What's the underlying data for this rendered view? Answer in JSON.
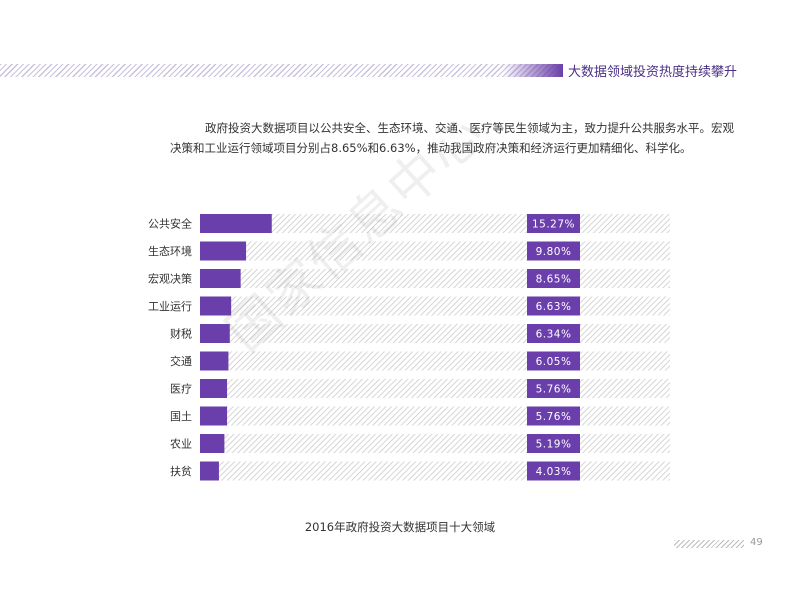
{
  "header": {
    "title": "大数据领域投资热度持续攀升"
  },
  "intro": {
    "line1": "政府投资大数据项目以公共安全、生态环境、交通、医疗等民生领域为主，致力提升公共服务水平。宏观",
    "line2": "决策和工业运行领域项目分别占8.65%和6.63%，推动我国政府决策和经济运行更加精细化、科学化。"
  },
  "watermark": "国家信息中心",
  "chart_data": {
    "type": "bar",
    "orientation": "horizontal",
    "title": "2016年政府投资大数据项目十大领域",
    "categories": [
      "公共安全",
      "生态环境",
      "宏观决策",
      "工业运行",
      "财税",
      "交通",
      "医疗",
      "国土",
      "农业",
      "扶贫"
    ],
    "values": [
      15.27,
      9.8,
      8.65,
      6.63,
      6.34,
      6.05,
      5.76,
      5.76,
      5.19,
      4.03
    ],
    "value_labels": [
      "15.27%",
      "9.80%",
      "8.65%",
      "6.63%",
      "6.34%",
      "6.05%",
      "5.76%",
      "5.76%",
      "5.19%",
      "4.03%"
    ],
    "unit": "%",
    "xlim": [
      0,
      100
    ],
    "bar_color": "#6a3fab",
    "label_color": "#6a3fab",
    "track_color": "#c4c4c4"
  },
  "footer": {
    "page_number": "49"
  }
}
